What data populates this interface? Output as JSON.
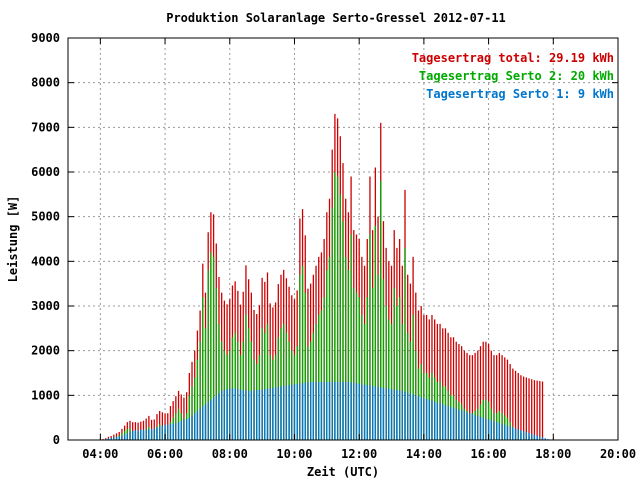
{
  "chart_data": {
    "type": "bar",
    "title": "Produktion Solaranlage Serto-Gressel 2012-07-11",
    "xlabel": "Zeit (UTC)",
    "ylabel": "Leistung [W]",
    "xlim": [
      3,
      20
    ],
    "ylim": [
      0,
      9000
    ],
    "x_ticks": [
      "04:00",
      "06:00",
      "08:00",
      "10:00",
      "12:00",
      "14:00",
      "16:00",
      "18:00",
      "20:00"
    ],
    "y_ticks": [
      "0",
      "1000",
      "2000",
      "3000",
      "4000",
      "5000",
      "6000",
      "7000",
      "8000",
      "9000"
    ],
    "grid": true,
    "legend_position": "top-right",
    "legend": [
      "Tagesertrag total: 29.19 kWh",
      "Tagesertrag Serto 2: 20 kWh",
      "Tagesertrag Serto 1: 9 kWh"
    ],
    "colors": {
      "total": "#cc0000",
      "serto2": "#00aa00",
      "serto1": "#0077cc"
    },
    "interval_minutes": 5,
    "x_start": "04:05",
    "serto1": [
      10,
      20,
      40,
      50,
      60,
      70,
      80,
      100,
      120,
      150,
      180,
      200,
      220,
      220,
      230,
      230,
      230,
      240,
      250,
      260,
      280,
      300,
      320,
      340,
      350,
      360,
      370,
      380,
      400,
      420,
      450,
      470,
      500,
      550,
      600,
      650,
      700,
      750,
      800,
      850,
      900,
      950,
      1000,
      1050,
      1100,
      1120,
      1140,
      1150,
      1160,
      1150,
      1140,
      1130,
      1120,
      1110,
      1100,
      1100,
      1110,
      1120,
      1120,
      1130,
      1140,
      1150,
      1160,
      1170,
      1180,
      1190,
      1200,
      1210,
      1220,
      1230,
      1240,
      1250,
      1250,
      1260,
      1270,
      1280,
      1290,
      1300,
      1300,
      1300,
      1300,
      1300,
      1300,
      1300,
      1300,
      1300,
      1300,
      1300,
      1300,
      1300,
      1300,
      1300,
      1290,
      1280,
      1270,
      1260,
      1250,
      1240,
      1230,
      1220,
      1210,
      1200,
      1190,
      1180,
      1170,
      1160,
      1150,
      1140,
      1130,
      1120,
      1110,
      1100,
      1080,
      1060,
      1040,
      1020,
      1000,
      980,
      960,
      940,
      920,
      900,
      880,
      860,
      840,
      820,
      800,
      780,
      760,
      740,
      720,
      700,
      680,
      660,
      640,
      620,
      600,
      580,
      560,
      540,
      520,
      500,
      480,
      460,
      440,
      420,
      400,
      380,
      360,
      340,
      320,
      300,
      280,
      260,
      240,
      220,
      200,
      180,
      160,
      140,
      120,
      100,
      80,
      60,
      40,
      20,
      10,
      10,
      10
    ],
    "serto2": [
      10,
      20,
      30,
      40,
      60,
      80,
      100,
      150,
      200,
      250,
      250,
      200,
      180,
      170,
      180,
      200,
      250,
      300,
      200,
      200,
      300,
      350,
      300,
      250,
      250,
      400,
      500,
      600,
      700,
      600,
      500,
      600,
      1000,
      1200,
      1400,
      1800,
      2200,
      3200,
      2500,
      3800,
      4200,
      4100,
      3400,
      2600,
      2200,
      2000,
      1900,
      2000,
      2300,
      2400,
      2200,
      1900,
      2200,
      2800,
      2500,
      2200,
      1800,
      1700,
      1900,
      2500,
      2400,
      2600,
      1900,
      1800,
      1900,
      2300,
      2500,
      2600,
      2400,
      2200,
      2000,
      1900,
      2100,
      3700,
      3900,
      3300,
      2100,
      2200,
      2400,
      2600,
      2800,
      2900,
      3200,
      3800,
      4100,
      5200,
      6000,
      5900,
      5500,
      4900,
      4100,
      3800,
      4600,
      3400,
      3300,
      3200,
      2800,
      2600,
      3200,
      4600,
      3400,
      4800,
      3700,
      5800,
      3600,
      3000,
      2700,
      2600,
      3400,
      3000,
      3200,
      2600,
      4300,
      2400,
      2200,
      2800,
      2000,
      1600,
      1700,
      1500,
      1500,
      1400,
      1500,
      1400,
      1300,
      1300,
      1200,
      1200,
      1100,
      1000,
      1000,
      900,
      850,
      800,
      700,
      650,
      600,
      600,
      650,
      700,
      800,
      900,
      900,
      850,
      700,
      600,
      600,
      650,
      600,
      550,
      500,
      400,
      300,
      250,
      200,
      150,
      120,
      100,
      80,
      60,
      40,
      30,
      20,
      10
    ],
    "total": [
      20,
      40,
      70,
      90,
      120,
      150,
      180,
      250,
      320,
      400,
      430,
      400,
      400,
      390,
      410,
      430,
      480,
      540,
      450,
      460,
      580,
      650,
      620,
      590,
      600,
      760,
      870,
      980,
      1100,
      1020,
      950,
      1070,
      1500,
      1750,
      2000,
      2450,
      2900,
      3950,
      3300,
      4650,
      5100,
      5050,
      4400,
      3650,
      3300,
      3120,
      3040,
      3150,
      3460,
      3550,
      3340,
      3030,
      3320,
      3910,
      3600,
      3300,
      2910,
      2820,
      3020,
      3630,
      3540,
      3750,
      3060,
      2970,
      3080,
      3490,
      3700,
      3810,
      3620,
      3430,
      3240,
      3150,
      3350,
      4960,
      5170,
      4580,
      3390,
      3500,
      3700,
      3900,
      4100,
      4200,
      4500,
      5100,
      5400,
      6500,
      7300,
      7200,
      6800,
      6200,
      5400,
      5100,
      5900,
      4700,
      4600,
      4500,
      4100,
      3900,
      4500,
      5900,
      4700,
      6100,
      5000,
      7100,
      4900,
      4300,
      4000,
      3900,
      4700,
      4300,
      4500,
      3900,
      5600,
      3700,
      3500,
      4100,
      3300,
      2900,
      3000,
      2800,
      2800,
      2700,
      2800,
      2700,
      2600,
      2600,
      2500,
      2500,
      2400,
      2300,
      2300,
      2200,
      2150,
      2100,
      2000,
      1950,
      1900,
      1900,
      1950,
      2000,
      2100,
      2200,
      2200,
      2150,
      2000,
      1900,
      1900,
      1950,
      1900,
      1850,
      1800,
      1700,
      1600,
      1550,
      1500,
      1450,
      1420,
      1400,
      1380,
      1360,
      1340,
      1330,
      1320,
      1310
    ]
  }
}
